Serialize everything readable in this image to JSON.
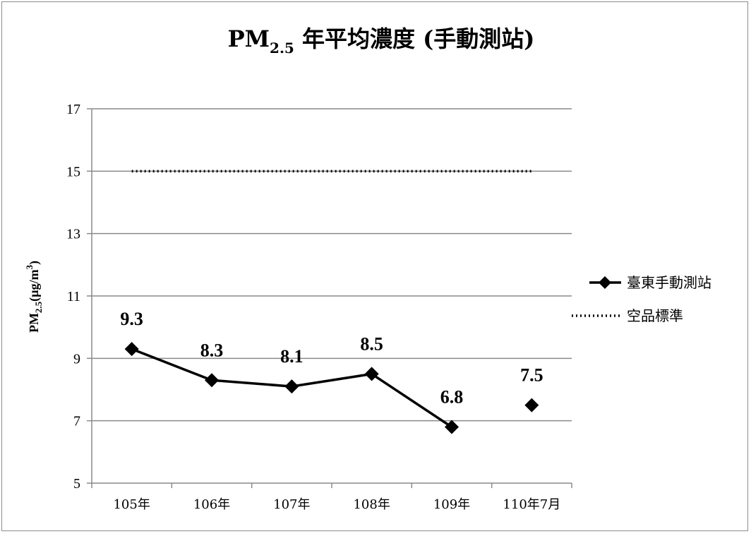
{
  "chart_data": {
    "type": "line",
    "title": {
      "main": "PM",
      "sub": "2.5",
      "rest": " 年平均濃度 (手動測站)"
    },
    "ylabel": {
      "main": "PM",
      "sub": "2.5",
      "mid": "(µg/m",
      "sup": "3",
      "end": ")"
    },
    "categories": [
      "105年",
      "106年",
      "107年",
      "108年",
      "109年",
      "110年7月"
    ],
    "ylim": [
      5,
      17
    ],
    "yticks": [
      5,
      7,
      9,
      11,
      13,
      15,
      17
    ],
    "grid": true,
    "legend_position": "right",
    "series": [
      {
        "name": "臺東手動測站",
        "values": [
          9.3,
          8.3,
          8.1,
          8.5,
          6.8,
          7.5
        ],
        "labels": [
          "9.3",
          "8.3",
          "8.1",
          "8.5",
          "6.8",
          "7.5"
        ],
        "connected_segments": [
          [
            0,
            4
          ],
          [
            5,
            5
          ]
        ],
        "style": "solid-diamond",
        "color": "#000000"
      },
      {
        "name": "空品標準",
        "values": [
          15,
          15,
          15,
          15,
          15,
          15
        ],
        "style": "dotted",
        "color": "#000000"
      }
    ]
  }
}
